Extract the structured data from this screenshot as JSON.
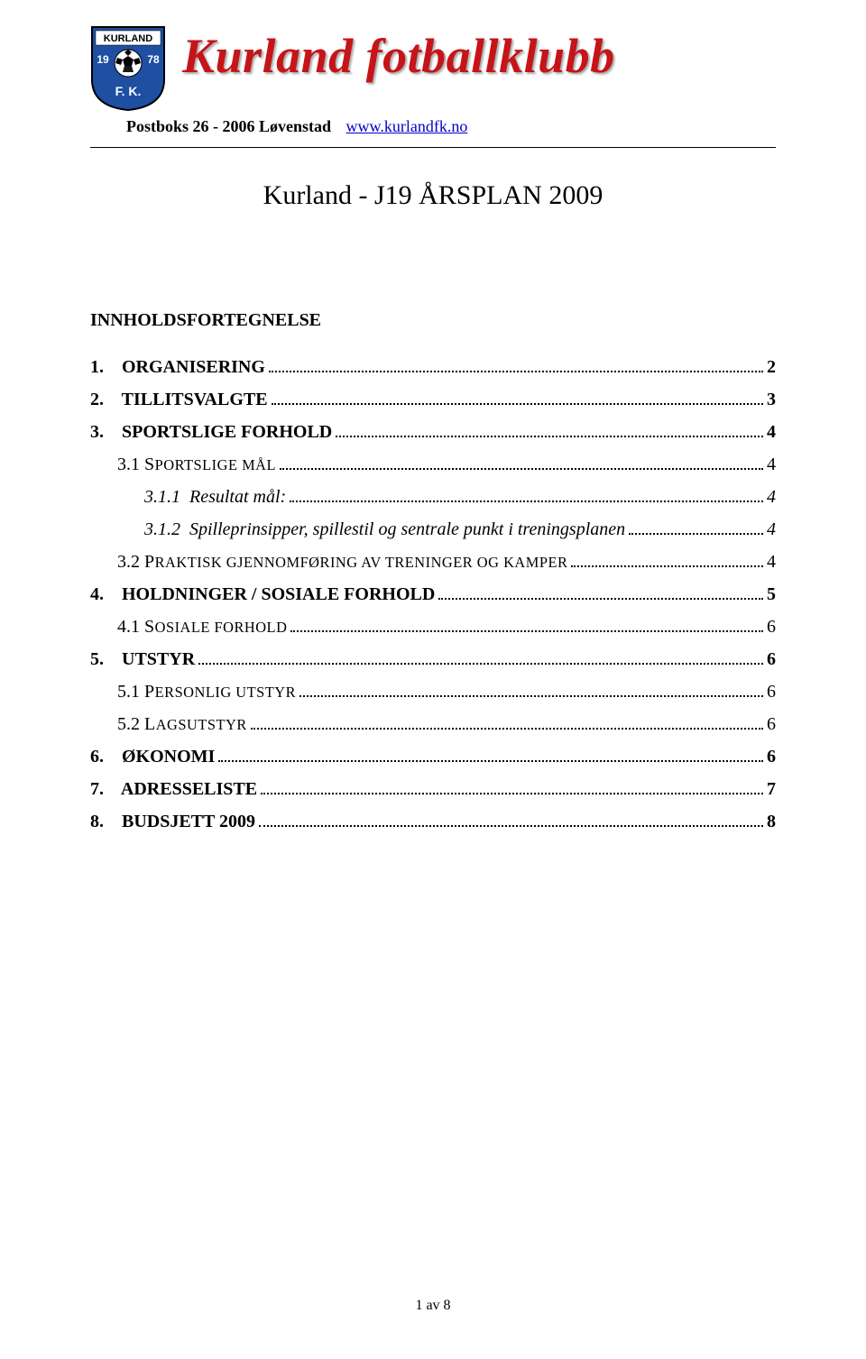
{
  "brand": {
    "title": "Kurland fotballklubb",
    "title_color": "#c61418",
    "address": "Postboks 26 - 2006 Løvenstad",
    "link": "www.kurlandfk.no",
    "link_color": "#0000cc"
  },
  "logo": {
    "shield_blue": "#1e4fa3",
    "shield_white": "#ffffff",
    "shield_black": "#000000",
    "top_text": "KURLAND",
    "year_left": "19",
    "year_right": "78",
    "initials": "F. K."
  },
  "document": {
    "title": "Kurland - J19 ÅRSPLAN 2009",
    "toc_heading": "INNHOLDSFORTEGNELSE"
  },
  "toc": [
    {
      "level": 1,
      "num": "1.",
      "label": "ORGANISERING",
      "page": "2"
    },
    {
      "level": 1,
      "num": "2.",
      "label": "TILLITSVALGTE",
      "page": "3"
    },
    {
      "level": 1,
      "num": "3.",
      "label": "SPORTSLIGE FORHOLD",
      "page": "4"
    },
    {
      "level": 2,
      "num": "3.1",
      "label_sc": "SPORTSLIGE MÅL",
      "page": "4"
    },
    {
      "level": 3,
      "num": "3.1.1",
      "label": "Resultat mål:",
      "page": "4"
    },
    {
      "level": 3,
      "num": "3.1.2",
      "label": "Spilleprinsipper, spillestil og sentrale punkt i treningsplanen",
      "page": "4"
    },
    {
      "level": 2,
      "num": "3.2",
      "label_sc": "PRAKTISK GJENNOMFØRING AV TRENINGER OG KAMPER",
      "page": "4"
    },
    {
      "level": 1,
      "num": "4.",
      "label": "HOLDNINGER / SOSIALE FORHOLD",
      "page": "5"
    },
    {
      "level": 2,
      "num": "4.1",
      "label_sc": "SOSIALE FORHOLD",
      "page": "6"
    },
    {
      "level": 1,
      "num": "5.",
      "label": "UTSTYR",
      "page": "6"
    },
    {
      "level": 2,
      "num": "5.1",
      "label_sc": "PERSONLIG UTSTYR",
      "page": "6"
    },
    {
      "level": 2,
      "num": "5.2",
      "label_sc": "LAGSUTSTYR",
      "page": "6"
    },
    {
      "level": 1,
      "num": "6.",
      "label": "ØKONOMI",
      "page": "6"
    },
    {
      "level": 1,
      "num": "7.",
      "label": "ADRESSELISTE",
      "page": "7"
    },
    {
      "level": 1,
      "num": "8.",
      "label": "BUDSJETT 2009",
      "page": "8"
    }
  ],
  "footer": {
    "text": "1 av 8"
  }
}
